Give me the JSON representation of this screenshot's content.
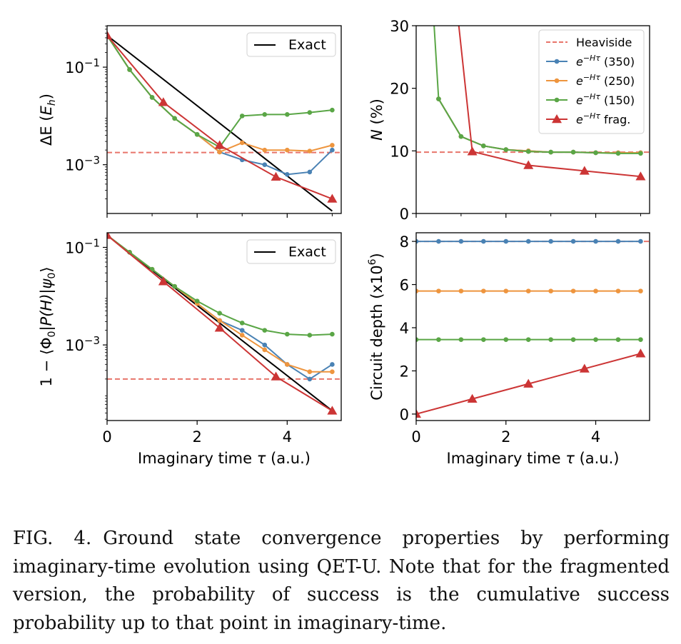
{
  "colors": {
    "exact": "#000000",
    "heaviside": "#e8756b",
    "s350": "#4a82b4",
    "s250": "#ee953e",
    "s150": "#5aa646",
    "frag": "#cc3535"
  },
  "chart_data": [
    {
      "id": "energy_error",
      "type": "line",
      "yscale": "log",
      "ylabel": "ΔE (E_h)",
      "xlim": [
        0,
        5.2
      ],
      "ylim_log10": [
        -4.0,
        -0.15
      ],
      "xticks": [
        "0",
        "2",
        "4"
      ],
      "yticks": [
        {
          "value": -1,
          "label": "10^-1"
        },
        {
          "value": -3,
          "label": "10^-3"
        }
      ],
      "legend": {
        "position": "top-right",
        "entries": [
          "Exact"
        ]
      },
      "hline": {
        "name": "Heaviside",
        "value_log10": -2.75
      },
      "series": [
        {
          "name": "Exact",
          "color_key": "exact",
          "marker": "none",
          "x": [
            0,
            5
          ],
          "y_log10": [
            -0.35,
            -3.95
          ]
        },
        {
          "name": "e^{-Hτ} (350)",
          "color_key": "s350",
          "marker": "dot",
          "x": [
            0,
            0.5,
            1,
            1.5,
            2,
            2.5,
            3,
            3.5,
            4,
            4.5,
            5
          ],
          "y_log10": [
            -0.35,
            -1.05,
            -1.62,
            -2.05,
            -2.38,
            -2.74,
            -2.9,
            -3.0,
            -3.2,
            -3.15,
            -2.7
          ]
        },
        {
          "name": "e^{-Hτ} (250)",
          "color_key": "s250",
          "marker": "dot",
          "x": [
            0,
            0.5,
            1,
            1.5,
            2,
            2.5,
            3,
            3.5,
            4,
            4.5,
            5
          ],
          "y_log10": [
            -0.35,
            -1.05,
            -1.62,
            -2.05,
            -2.38,
            -2.74,
            -2.55,
            -2.7,
            -2.7,
            -2.72,
            -2.6
          ]
        },
        {
          "name": "e^{-Hτ} (150)",
          "color_key": "s150",
          "marker": "dot",
          "x": [
            0,
            0.5,
            1,
            1.5,
            2,
            2.5,
            3,
            3.5,
            4,
            4.5,
            5
          ],
          "y_log10": [
            -0.35,
            -1.05,
            -1.62,
            -2.05,
            -2.38,
            -2.64,
            -2.0,
            -1.97,
            -1.97,
            -1.93,
            -1.88
          ]
        },
        {
          "name": "e^{-Hτ} frag.",
          "color_key": "frag",
          "marker": "triangle",
          "x": [
            0,
            1.25,
            2.5,
            3.75,
            5
          ],
          "y_log10": [
            -0.35,
            -1.72,
            -2.6,
            -3.25,
            -3.7
          ]
        }
      ]
    },
    {
      "id": "success_prob",
      "type": "line",
      "yscale": "linear",
      "ylabel": "N (%)",
      "xlim": [
        0,
        5.2
      ],
      "ylim": [
        0,
        30
      ],
      "xticks": [
        "0",
        "2",
        "4"
      ],
      "yticks": [
        {
          "value": 0,
          "label": "0"
        },
        {
          "value": 10,
          "label": "10"
        },
        {
          "value": 20,
          "label": "20"
        },
        {
          "value": 30,
          "label": "30"
        }
      ],
      "legend": {
        "position": "top-right",
        "entries": [
          "Heaviside",
          "e^{-Hτ} (350)",
          "e^{-Hτ} (250)",
          "e^{-Hτ} (150)",
          "e^{-Hτ} frag."
        ]
      },
      "hline": {
        "name": "Heaviside",
        "value": 9.8
      },
      "series": [
        {
          "name": "e^{-Hτ} (350)",
          "color_key": "s350",
          "marker": "dot",
          "x": [
            0.5,
            1,
            1.5,
            2,
            2.5,
            3,
            3.5,
            4,
            4.5,
            5
          ],
          "y": [
            18.3,
            12.3,
            10.8,
            10.2,
            10.0,
            9.8,
            9.8,
            9.7,
            9.7,
            9.7
          ]
        },
        {
          "name": "e^{-Hτ} (250)",
          "color_key": "s250",
          "marker": "dot",
          "x": [
            0.5,
            1,
            1.5,
            2,
            2.5,
            3,
            3.5,
            4,
            4.5,
            5
          ],
          "y": [
            18.3,
            12.3,
            10.8,
            10.2,
            10.0,
            9.8,
            9.8,
            9.7,
            9.7,
            9.7
          ]
        },
        {
          "name": "e^{-Hτ} (150)",
          "color_key": "s150",
          "marker": "dot",
          "x": [
            0.4,
            0.5,
            1,
            1.5,
            2,
            2.5,
            3,
            3.5,
            4,
            4.5,
            5
          ],
          "y": [
            30,
            18.3,
            12.3,
            10.8,
            10.2,
            9.9,
            9.8,
            9.8,
            9.7,
            9.6,
            9.6
          ]
        },
        {
          "name": "e^{-Hτ} frag.",
          "color_key": "frag",
          "marker": "triangle",
          "x": [
            0.95,
            1.25,
            2.5,
            3.75,
            5
          ],
          "y": [
            30,
            9.9,
            7.7,
            6.8,
            5.9
          ]
        }
      ]
    },
    {
      "id": "infidelity",
      "type": "line",
      "yscale": "log",
      "ylabel": "1 − ⟨Φ0|P(H)|ψ0⟩",
      "xlabel": "Imaginary time τ (a.u.)",
      "xlim": [
        0,
        5.2
      ],
      "ylim_log10": [
        -4.55,
        -0.7
      ],
      "xticks": [
        "0",
        "2",
        "4"
      ],
      "yticks": [
        {
          "value": -1,
          "label": "10^-1"
        },
        {
          "value": -3,
          "label": "10^-3"
        }
      ],
      "legend": {
        "position": "top-right",
        "entries": [
          "Exact"
        ]
      },
      "hline": {
        "name": "Heaviside",
        "value_log10": -3.7
      },
      "series": [
        {
          "name": "Exact",
          "color_key": "exact",
          "marker": "none",
          "x": [
            0,
            5
          ],
          "y_log10": [
            -0.75,
            -4.35
          ]
        },
        {
          "name": "e^{-Hτ} (350)",
          "color_key": "s350",
          "marker": "dot",
          "x": [
            0,
            0.5,
            1,
            1.5,
            2,
            2.5,
            3,
            3.5,
            4,
            4.5,
            5
          ],
          "y_log10": [
            -0.75,
            -1.1,
            -1.45,
            -1.8,
            -2.15,
            -2.5,
            -2.7,
            -3.0,
            -3.4,
            -3.7,
            -3.4
          ]
        },
        {
          "name": "e^{-Hτ} (250)",
          "color_key": "s250",
          "marker": "dot",
          "x": [
            0,
            0.5,
            1,
            1.5,
            2,
            2.5,
            3,
            3.5,
            4,
            4.5,
            5
          ],
          "y_log10": [
            -0.75,
            -1.1,
            -1.45,
            -1.8,
            -2.15,
            -2.5,
            -2.8,
            -3.1,
            -3.4,
            -3.55,
            -3.55
          ]
        },
        {
          "name": "e^{-Hτ} (150)",
          "color_key": "s150",
          "marker": "dot",
          "x": [
            0,
            0.5,
            1,
            1.5,
            2,
            2.5,
            3,
            3.5,
            4,
            4.5,
            5
          ],
          "y_log10": [
            -0.75,
            -1.1,
            -1.45,
            -1.8,
            -2.1,
            -2.35,
            -2.55,
            -2.7,
            -2.78,
            -2.8,
            -2.78
          ]
        },
        {
          "name": "e^{-Hτ} frag.",
          "color_key": "frag",
          "marker": "triangle",
          "x": [
            0,
            1.25,
            2.5,
            3.75,
            5
          ],
          "y_log10": [
            -0.75,
            -1.7,
            -2.65,
            -3.65,
            -4.35
          ]
        }
      ]
    },
    {
      "id": "circuit_depth",
      "type": "line",
      "yscale": "linear",
      "ylabel": "Circuit depth (x10^6)",
      "xlabel": "Imaginary time τ (a.u.)",
      "xlim": [
        0,
        5.2
      ],
      "ylim": [
        -0.3,
        8.4
      ],
      "xticks": [
        "0",
        "2",
        "4"
      ],
      "yticks": [
        {
          "value": 0,
          "label": "0"
        },
        {
          "value": 2,
          "label": "2"
        },
        {
          "value": 4,
          "label": "4"
        },
        {
          "value": 6,
          "label": "6"
        },
        {
          "value": 8,
          "label": "8"
        }
      ],
      "hline": {
        "name": "Heaviside",
        "value": 8.0
      },
      "series": [
        {
          "name": "e^{-Hτ} (350)",
          "color_key": "s350",
          "marker": "dot",
          "x": [
            0,
            0.5,
            1,
            1.5,
            2,
            2.5,
            3,
            3.5,
            4,
            4.5,
            5
          ],
          "y": [
            8.0,
            8.0,
            8.0,
            8.0,
            8.0,
            8.0,
            8.0,
            8.0,
            8.0,
            8.0,
            8.0
          ]
        },
        {
          "name": "e^{-Hτ} (250)",
          "color_key": "s250",
          "marker": "dot",
          "x": [
            0,
            0.5,
            1,
            1.5,
            2,
            2.5,
            3,
            3.5,
            4,
            4.5,
            5
          ],
          "y": [
            5.7,
            5.7,
            5.7,
            5.7,
            5.7,
            5.7,
            5.7,
            5.7,
            5.7,
            5.7,
            5.7
          ]
        },
        {
          "name": "e^{-Hτ} (150)",
          "color_key": "s150",
          "marker": "dot",
          "x": [
            0,
            0.5,
            1,
            1.5,
            2,
            2.5,
            3,
            3.5,
            4,
            4.5,
            5
          ],
          "y": [
            3.45,
            3.45,
            3.45,
            3.45,
            3.45,
            3.45,
            3.45,
            3.45,
            3.45,
            3.45,
            3.45
          ]
        },
        {
          "name": "e^{-Hτ} frag.",
          "color_key": "frag",
          "marker": "triangle",
          "x": [
            0,
            1.25,
            2.5,
            3.75,
            5
          ],
          "y": [
            0.0,
            0.7,
            1.4,
            2.1,
            2.8
          ]
        }
      ]
    }
  ],
  "caption": {
    "label": "FIG. 4.",
    "text": "Ground state convergence properties by performing imaginary-time evolution using QET-U. Note that for the fragmented version, the probability of success is the cumulative success probability up to that point in imaginary-time."
  }
}
